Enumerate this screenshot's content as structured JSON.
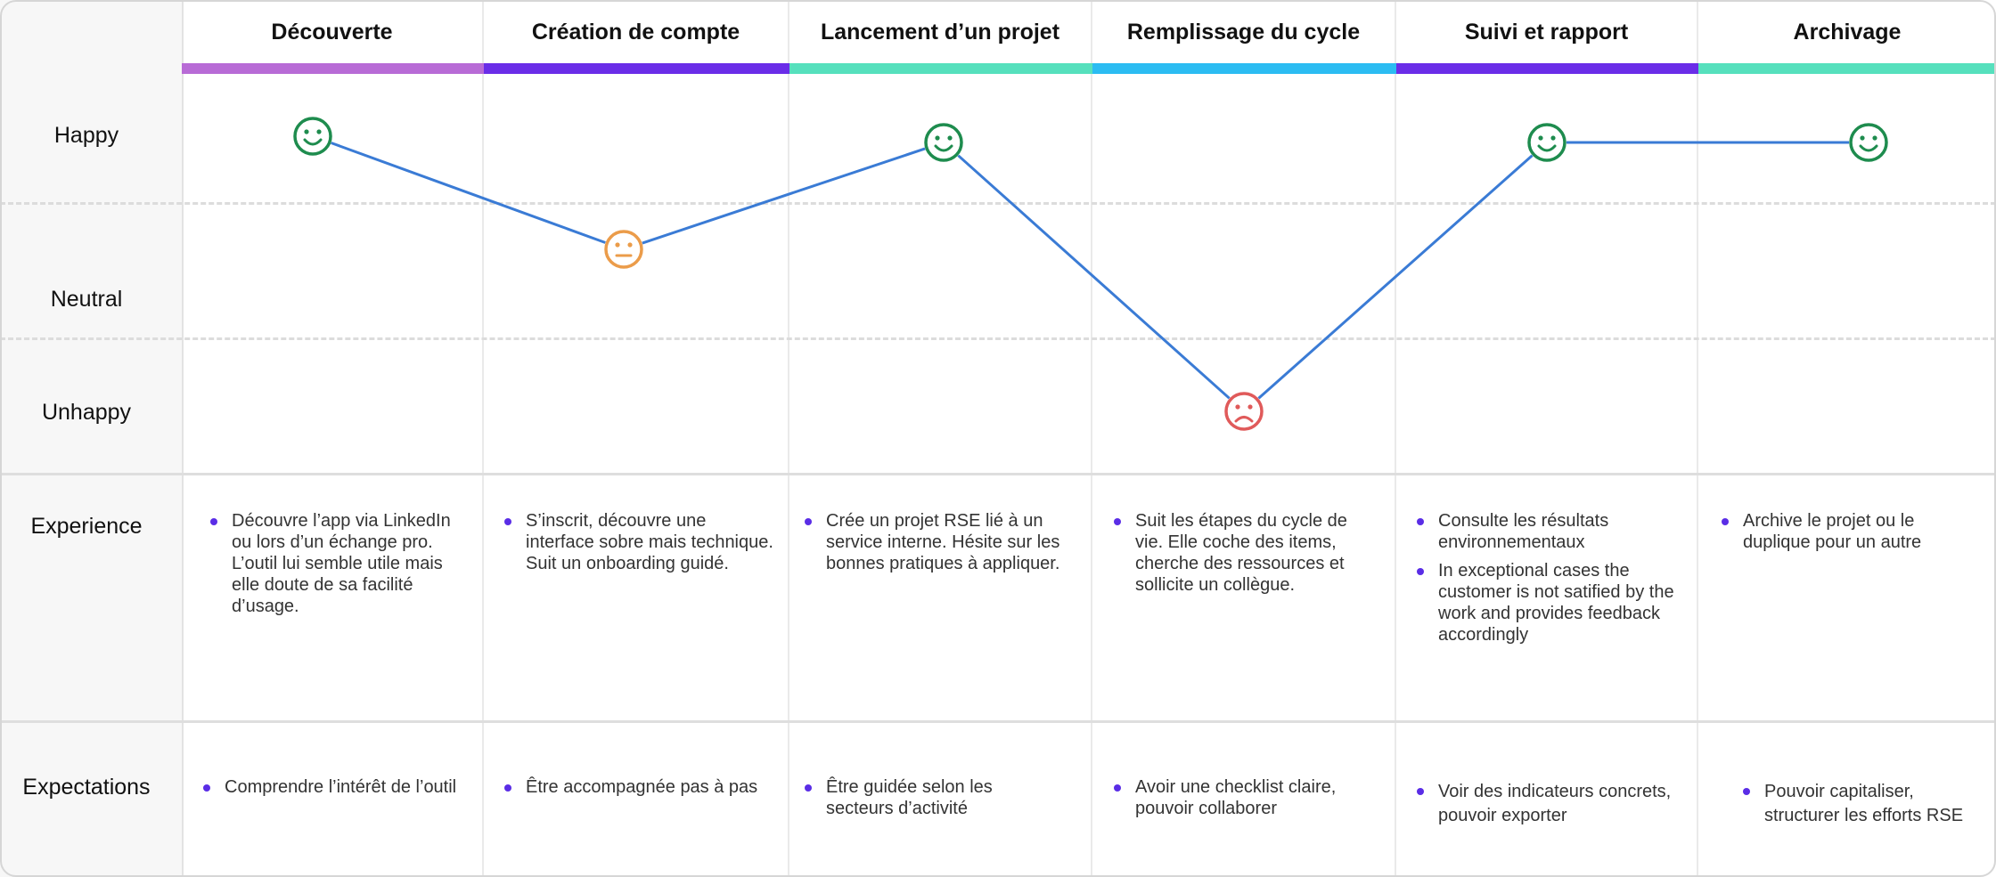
{
  "stages": [
    {
      "title": "Découverte",
      "color": "#b86bd6",
      "emotion": "happy",
      "experience": [
        "Découvre l’app via LinkedIn ou lors d’un échange pro. L’outil lui semble utile mais elle doute de sa facilité d’usage."
      ],
      "expectations": [
        "Comprendre l’intérêt de l’outil"
      ]
    },
    {
      "title": "Création de compte",
      "color": "#6a2de8",
      "emotion": "neutral",
      "experience": [
        "S’inscrit, découvre une interface sobre mais technique. Suit un onboarding guidé."
      ],
      "expectations": [
        "Être accompagnée pas à pas"
      ]
    },
    {
      "title": "Lancement d’un projet",
      "color": "#56e0bd",
      "emotion": "happy",
      "experience": [
        "Crée un projet RSE lié à un service interne. Hésite sur les bonnes pratiques à appliquer."
      ],
      "expectations": [
        "Être guidée selon les secteurs d’activité"
      ]
    },
    {
      "title": "Remplissage du cycle",
      "color": "#2bbcf2",
      "emotion": "unhappy",
      "experience": [
        "Suit les étapes du cycle de vie. Elle coche des items, cherche des ressources et sollicite un collègue."
      ],
      "expectations": [
        "Avoir une checklist claire, pouvoir collaborer"
      ]
    },
    {
      "title": "Suivi et rapport",
      "color": "#6a2de8",
      "emotion": "happy",
      "experience": [
        "Consulte les résultats environnementaux",
        "In exceptional cases the customer is not satified by the work and provides feedback accordingly"
      ],
      "expectations": [
        "Voir des indicateurs concrets, pouvoir exporter"
      ]
    },
    {
      "title": "Archivage",
      "color": "#56e0bd",
      "emotion": "happy",
      "experience": [
        "Archive le projet ou le duplique pour un autre"
      ],
      "expectations": [
        "Pouvoir capitaliser, structurer les efforts RSE"
      ]
    }
  ],
  "row_labels": {
    "happy": "Happy",
    "neutral": "Neutral",
    "unhappy": "Unhappy",
    "experience": "Experience",
    "expectations": "Expectations"
  },
  "colors": {
    "line": "#3a7bd5",
    "happy": "#1e8c4e",
    "neutral": "#eb9c4a",
    "unhappy": "#e05a5a",
    "bullet": "#5a2de6"
  },
  "icons": {
    "happy": "smiley-happy-icon",
    "neutral": "smiley-neutral-icon",
    "unhappy": "smiley-sad-icon"
  }
}
